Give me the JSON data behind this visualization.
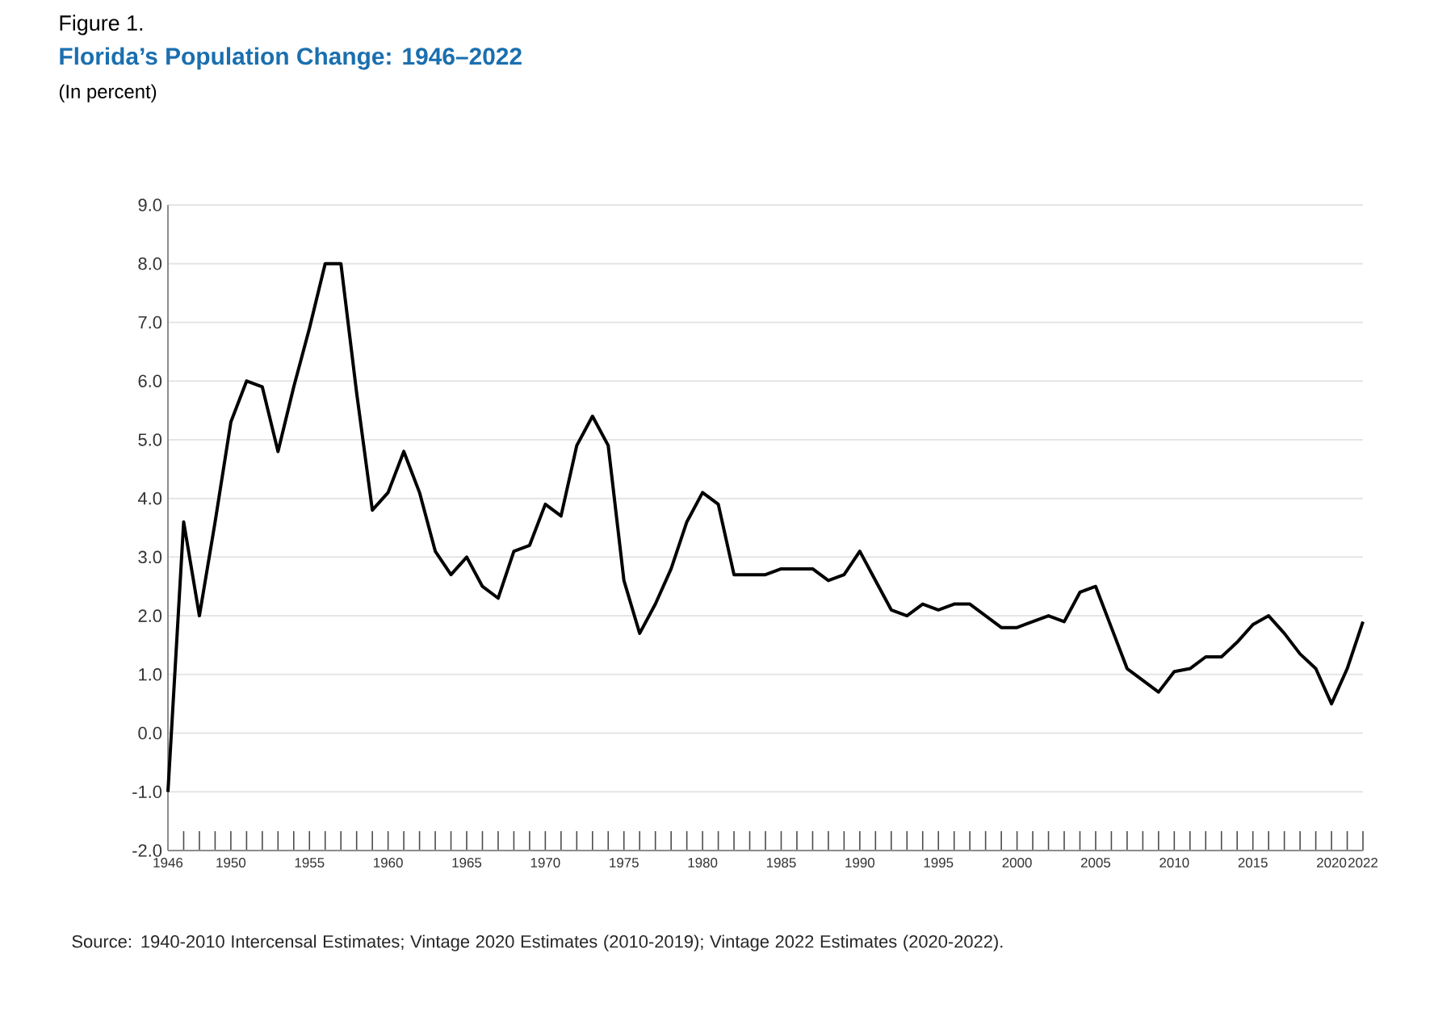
{
  "chart_data": {
    "type": "line",
    "title": "Florida’s Population Change: 1946–2022",
    "subtitle": "(In percent)",
    "annotations": [
      "Figure 1.",
      "Source: 1940-2010 Intercensal Estimates; Vintage 2020 Estimates (2010-2019); Vintage 2022 Estimates (2020-2022)."
    ],
    "x": [
      1946,
      1947,
      1948,
      1949,
      1950,
      1951,
      1952,
      1953,
      1954,
      1955,
      1956,
      1957,
      1958,
      1959,
      1960,
      1961,
      1962,
      1963,
      1964,
      1965,
      1966,
      1967,
      1968,
      1969,
      1970,
      1971,
      1972,
      1973,
      1974,
      1975,
      1976,
      1977,
      1978,
      1979,
      1980,
      1981,
      1982,
      1983,
      1984,
      1985,
      1986,
      1987,
      1988,
      1989,
      1990,
      1991,
      1992,
      1993,
      1994,
      1995,
      1996,
      1997,
      1998,
      1999,
      2000,
      2001,
      2002,
      2003,
      2004,
      2005,
      2006,
      2007,
      2008,
      2009,
      2010,
      2011,
      2012,
      2013,
      2014,
      2015,
      2016,
      2017,
      2018,
      2019,
      2020,
      2021,
      2022
    ],
    "series": [
      {
        "color": "#000000",
        "values": [
          -1.0,
          3.6,
          2.0,
          3.6,
          5.3,
          6.0,
          5.9,
          4.8,
          5.9,
          6.9,
          8.0,
          8.0,
          5.8,
          3.8,
          4.1,
          4.8,
          4.1,
          3.1,
          2.7,
          3.0,
          2.5,
          2.3,
          3.1,
          3.2,
          3.9,
          3.7,
          4.9,
          5.4,
          4.9,
          2.6,
          1.7,
          2.2,
          2.8,
          3.6,
          4.1,
          3.9,
          2.7,
          2.7,
          2.7,
          2.8,
          2.8,
          2.8,
          2.6,
          2.7,
          3.1,
          2.6,
          2.1,
          2.0,
          2.2,
          2.1,
          2.2,
          2.2,
          2.0,
          1.8,
          1.8,
          1.9,
          2.0,
          1.9,
          2.4,
          2.5,
          1.8,
          1.1,
          0.9,
          0.7,
          1.05,
          1.1,
          1.3,
          1.3,
          1.55,
          1.85,
          2.0,
          1.7,
          1.35,
          1.1,
          0.5,
          1.1,
          1.9
        ]
      }
    ],
    "xlim": [
      1946,
      2022
    ],
    "xticks": [
      1946,
      {
        "value": 1947,
        "label": null
      },
      {
        "value": 1948,
        "label": null
      },
      {
        "value": 1949,
        "label": null
      },
      1950,
      {
        "value": 1951,
        "label": null
      },
      {
        "value": 1952,
        "label": null
      },
      {
        "value": 1953,
        "label": null
      },
      {
        "value": 1954,
        "label": null
      },
      1955,
      {
        "value": 1956,
        "label": null
      },
      {
        "value": 1957,
        "label": null
      },
      {
        "value": 1958,
        "label": null
      },
      {
        "value": 1959,
        "label": null
      },
      1960,
      {
        "value": 1961,
        "label": null
      },
      {
        "value": 1962,
        "label": null
      },
      {
        "value": 1963,
        "label": null
      },
      {
        "value": 1964,
        "label": null
      },
      1965,
      {
        "value": 1966,
        "label": null
      },
      {
        "value": 1967,
        "label": null
      },
      {
        "value": 1968,
        "label": null
      },
      {
        "value": 1969,
        "label": null
      },
      1970,
      {
        "value": 1971,
        "label": null
      },
      {
        "value": 1972,
        "label": null
      },
      {
        "value": 1973,
        "label": null
      },
      {
        "value": 1974,
        "label": null
      },
      1975,
      {
        "value": 1976,
        "label": null
      },
      {
        "value": 1977,
        "label": null
      },
      {
        "value": 1978,
        "label": null
      },
      {
        "value": 1979,
        "label": null
      },
      1980,
      {
        "value": 1981,
        "label": null
      },
      {
        "value": 1982,
        "label": null
      },
      {
        "value": 1983,
        "label": null
      },
      {
        "value": 1984,
        "label": null
      },
      1985,
      {
        "value": 1986,
        "label": null
      },
      {
        "value": 1987,
        "label": null
      },
      {
        "value": 1988,
        "label": null
      },
      {
        "value": 1989,
        "label": null
      },
      1990,
      {
        "value": 1991,
        "label": null
      },
      {
        "value": 1992,
        "label": null
      },
      {
        "value": 1993,
        "label": null
      },
      {
        "value": 1994,
        "label": null
      },
      1995,
      {
        "value": 1996,
        "label": null
      },
      {
        "value": 1997,
        "label": null
      },
      {
        "value": 1998,
        "label": null
      },
      {
        "value": 1999,
        "label": null
      },
      2000,
      {
        "value": 2001,
        "label": null
      },
      {
        "value": 2002,
        "label": null
      },
      {
        "value": 2003,
        "label": null
      },
      {
        "value": 2004,
        "label": null
      },
      2005,
      {
        "value": 2006,
        "label": null
      },
      {
        "value": 2007,
        "label": null
      },
      {
        "value": 2008,
        "label": null
      },
      {
        "value": 2009,
        "label": null
      },
      2010,
      {
        "value": 2011,
        "label": null
      },
      {
        "value": 2012,
        "label": null
      },
      {
        "value": 2013,
        "label": null
      },
      {
        "value": 2014,
        "label": null
      },
      2015,
      {
        "value": 2016,
        "label": null
      },
      {
        "value": 2017,
        "label": null
      },
      {
        "value": 2018,
        "label": null
      },
      {
        "value": 2019,
        "label": null
      },
      2020,
      {
        "value": 2021,
        "label": null
      },
      2022
    ],
    "ylim": [
      -2,
      9
    ],
    "yticks": [
      {
        "value": -2,
        "label": "-2.0"
      },
      {
        "value": -1,
        "label": "-1.0"
      },
      {
        "value": 0,
        "label": "0.0"
      },
      {
        "value": 1,
        "label": "1.0"
      },
      {
        "value": 2,
        "label": "2.0"
      },
      {
        "value": 3,
        "label": "3.0"
      },
      {
        "value": 4,
        "label": "4.0"
      },
      {
        "value": 5,
        "label": "5.0"
      },
      {
        "value": 6,
        "label": "6.0"
      },
      {
        "value": 7,
        "label": "7.0"
      },
      {
        "value": 8,
        "label": "8.0"
      },
      {
        "value": 9,
        "label": "9.0"
      }
    ],
    "grid": "y",
    "line_style": "solid"
  }
}
